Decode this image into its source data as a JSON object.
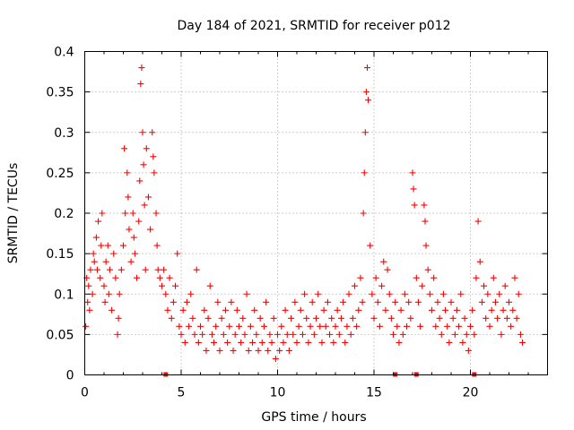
{
  "chart_data": {
    "type": "scatter",
    "title": "Day 184 of 2021, SRMTID for receiver p012",
    "xlabel": "GPS time / hours",
    "ylabel": "SRMTID / TECUs",
    "xlim": [
      0,
      24.0
    ],
    "ylim": [
      0,
      0.4
    ],
    "x_ticks": [
      0,
      5,
      10,
      15,
      20
    ],
    "y_ticks": [
      0,
      0.05,
      0.1,
      0.15,
      0.2,
      0.25,
      0.3,
      0.35,
      0.4
    ],
    "x_tick_labels": [
      "0",
      "5",
      "10",
      "15",
      "20"
    ],
    "y_tick_labels": [
      "0",
      "0.05",
      "0.1",
      "0.15",
      "0.2",
      "0.25",
      "0.3",
      "0.35",
      "0.4"
    ],
    "grid": true,
    "marker": "+",
    "color": "#ff0000",
    "series": [
      {
        "name": "SRMTID",
        "points": [
          [
            0.05,
            0.06
          ],
          [
            0.1,
            0.12
          ],
          [
            0.15,
            0.09
          ],
          [
            0.2,
            0.11
          ],
          [
            0.25,
            0.08
          ],
          [
            0.3,
            0.13
          ],
          [
            0.4,
            0.1
          ],
          [
            0.45,
            0.15
          ],
          [
            0.5,
            0.14
          ],
          [
            0.6,
            0.17
          ],
          [
            0.65,
            0.13
          ],
          [
            0.7,
            0.19
          ],
          [
            0.8,
            0.12
          ],
          [
            0.85,
            0.16
          ],
          [
            0.9,
            0.2
          ],
          [
            1.0,
            0.11
          ],
          [
            1.05,
            0.09
          ],
          [
            1.1,
            0.14
          ],
          [
            1.2,
            0.16
          ],
          [
            1.25,
            0.1
          ],
          [
            1.3,
            0.13
          ],
          [
            1.4,
            0.08
          ],
          [
            1.5,
            0.15
          ],
          [
            1.6,
            0.12
          ],
          [
            1.7,
            0.05
          ],
          [
            1.75,
            0.07
          ],
          [
            1.8,
            0.1
          ],
          [
            1.9,
            0.13
          ],
          [
            2.0,
            0.16
          ],
          [
            2.05,
            0.28
          ],
          [
            2.1,
            0.2
          ],
          [
            2.2,
            0.25
          ],
          [
            2.25,
            0.22
          ],
          [
            2.3,
            0.18
          ],
          [
            2.4,
            0.14
          ],
          [
            2.5,
            0.2
          ],
          [
            2.55,
            0.17
          ],
          [
            2.6,
            0.15
          ],
          [
            2.7,
            0.12
          ],
          [
            2.8,
            0.19
          ],
          [
            2.85,
            0.24
          ],
          [
            2.9,
            0.36
          ],
          [
            2.95,
            0.38
          ],
          [
            3.0,
            0.3
          ],
          [
            3.05,
            0.26
          ],
          [
            3.1,
            0.21
          ],
          [
            3.15,
            0.13
          ],
          [
            3.2,
            0.28
          ],
          [
            3.3,
            0.22
          ],
          [
            3.4,
            0.18
          ],
          [
            3.5,
            0.3
          ],
          [
            3.55,
            0.27
          ],
          [
            3.6,
            0.25
          ],
          [
            3.7,
            0.2
          ],
          [
            3.75,
            0.16
          ],
          [
            3.8,
            0.13
          ],
          [
            3.9,
            0.12
          ],
          [
            4.0,
            0.11
          ],
          [
            4.1,
            0.13
          ],
          [
            4.2,
            0.1
          ],
          [
            4.3,
            0.08
          ],
          [
            4.4,
            0.12
          ],
          [
            4.5,
            0.07
          ],
          [
            4.6,
            0.09
          ],
          [
            4.7,
            0.11
          ],
          [
            4.8,
            0.15
          ],
          [
            4.9,
            0.06
          ],
          [
            5.0,
            0.05
          ],
          [
            5.1,
            0.08
          ],
          [
            5.2,
            0.04
          ],
          [
            5.3,
            0.09
          ],
          [
            5.4,
            0.06
          ],
          [
            5.5,
            0.1
          ],
          [
            5.6,
            0.07
          ],
          [
            5.7,
            0.05
          ],
          [
            5.8,
            0.13
          ],
          [
            5.9,
            0.04
          ],
          [
            6.0,
            0.06
          ],
          [
            6.1,
            0.05
          ],
          [
            6.2,
            0.08
          ],
          [
            6.3,
            0.03
          ],
          [
            6.4,
            0.07
          ],
          [
            6.5,
            0.11
          ],
          [
            6.6,
            0.05
          ],
          [
            6.7,
            0.04
          ],
          [
            6.8,
            0.06
          ],
          [
            6.9,
            0.09
          ],
          [
            7.0,
            0.03
          ],
          [
            7.1,
            0.07
          ],
          [
            7.2,
            0.05
          ],
          [
            7.3,
            0.08
          ],
          [
            7.4,
            0.04
          ],
          [
            7.5,
            0.06
          ],
          [
            7.6,
            0.09
          ],
          [
            7.7,
            0.03
          ],
          [
            7.8,
            0.05
          ],
          [
            7.9,
            0.08
          ],
          [
            8.0,
            0.06
          ],
          [
            8.1,
            0.04
          ],
          [
            8.2,
            0.07
          ],
          [
            8.3,
            0.05
          ],
          [
            8.4,
            0.1
          ],
          [
            8.5,
            0.03
          ],
          [
            8.6,
            0.06
          ],
          [
            8.7,
            0.04
          ],
          [
            8.8,
            0.08
          ],
          [
            8.9,
            0.05
          ],
          [
            9.0,
            0.03
          ],
          [
            9.1,
            0.07
          ],
          [
            9.2,
            0.04
          ],
          [
            9.3,
            0.06
          ],
          [
            9.4,
            0.09
          ],
          [
            9.5,
            0.03
          ],
          [
            9.6,
            0.05
          ],
          [
            9.7,
            0.04
          ],
          [
            9.8,
            0.07
          ],
          [
            9.9,
            0.02
          ],
          [
            10.0,
            0.05
          ],
          [
            10.1,
            0.03
          ],
          [
            10.2,
            0.06
          ],
          [
            10.3,
            0.04
          ],
          [
            10.4,
            0.08
          ],
          [
            10.5,
            0.05
          ],
          [
            10.6,
            0.03
          ],
          [
            10.7,
            0.07
          ],
          [
            10.8,
            0.05
          ],
          [
            10.9,
            0.09
          ],
          [
            11.0,
            0.04
          ],
          [
            11.1,
            0.06
          ],
          [
            11.2,
            0.08
          ],
          [
            11.3,
            0.05
          ],
          [
            11.4,
            0.1
          ],
          [
            11.5,
            0.07
          ],
          [
            11.6,
            0.04
          ],
          [
            11.7,
            0.06
          ],
          [
            11.8,
            0.09
          ],
          [
            11.9,
            0.05
          ],
          [
            12.0,
            0.07
          ],
          [
            12.1,
            0.1
          ],
          [
            12.2,
            0.06
          ],
          [
            12.3,
            0.04
          ],
          [
            12.4,
            0.08
          ],
          [
            12.5,
            0.06
          ],
          [
            12.6,
            0.09
          ],
          [
            12.7,
            0.05
          ],
          [
            12.8,
            0.07
          ],
          [
            12.9,
            0.04
          ],
          [
            13.0,
            0.06
          ],
          [
            13.1,
            0.08
          ],
          [
            13.2,
            0.05
          ],
          [
            13.3,
            0.07
          ],
          [
            13.4,
            0.09
          ],
          [
            13.5,
            0.04
          ],
          [
            13.6,
            0.06
          ],
          [
            13.7,
            0.1
          ],
          [
            13.8,
            0.05
          ],
          [
            13.9,
            0.07
          ],
          [
            14.0,
            0.11
          ],
          [
            14.1,
            0.06
          ],
          [
            14.2,
            0.08
          ],
          [
            14.3,
            0.12
          ],
          [
            14.4,
            0.09
          ],
          [
            14.45,
            0.2
          ],
          [
            14.5,
            0.25
          ],
          [
            14.55,
            0.3
          ],
          [
            14.6,
            0.35
          ],
          [
            14.65,
            0.38
          ],
          [
            14.7,
            0.34
          ],
          [
            14.8,
            0.16
          ],
          [
            14.9,
            0.1
          ],
          [
            15.0,
            0.07
          ],
          [
            15.1,
            0.12
          ],
          [
            15.2,
            0.09
          ],
          [
            15.3,
            0.06
          ],
          [
            15.4,
            0.11
          ],
          [
            15.5,
            0.14
          ],
          [
            15.6,
            0.08
          ],
          [
            15.7,
            0.13
          ],
          [
            15.8,
            0.1
          ],
          [
            15.9,
            0.07
          ],
          [
            16.0,
            0.05
          ],
          [
            16.1,
            0.09
          ],
          [
            16.2,
            0.06
          ],
          [
            16.3,
            0.04
          ],
          [
            16.4,
            0.08
          ],
          [
            16.5,
            0.05
          ],
          [
            16.6,
            0.1
          ],
          [
            16.7,
            0.06
          ],
          [
            16.8,
            0.09
          ],
          [
            16.9,
            0.07
          ],
          [
            17.0,
            0.25
          ],
          [
            17.05,
            0.23
          ],
          [
            17.1,
            0.21
          ],
          [
            17.2,
            0.12
          ],
          [
            17.3,
            0.09
          ],
          [
            17.4,
            0.06
          ],
          [
            17.5,
            0.11
          ],
          [
            17.6,
            0.21
          ],
          [
            17.65,
            0.19
          ],
          [
            17.7,
            0.16
          ],
          [
            17.8,
            0.13
          ],
          [
            17.9,
            0.1
          ],
          [
            18.0,
            0.08
          ],
          [
            18.1,
            0.12
          ],
          [
            18.2,
            0.06
          ],
          [
            18.3,
            0.09
          ],
          [
            18.4,
            0.07
          ],
          [
            18.5,
            0.05
          ],
          [
            18.6,
            0.1
          ],
          [
            18.7,
            0.08
          ],
          [
            18.8,
            0.06
          ],
          [
            18.9,
            0.04
          ],
          [
            19.0,
            0.09
          ],
          [
            19.1,
            0.07
          ],
          [
            19.2,
            0.05
          ],
          [
            19.3,
            0.08
          ],
          [
            19.4,
            0.06
          ],
          [
            19.5,
            0.1
          ],
          [
            19.6,
            0.04
          ],
          [
            19.7,
            0.07
          ],
          [
            19.8,
            0.05
          ],
          [
            19.9,
            0.03
          ],
          [
            20.0,
            0.06
          ],
          [
            20.1,
            0.08
          ],
          [
            20.2,
            0.05
          ],
          [
            20.3,
            0.12
          ],
          [
            20.4,
            0.19
          ],
          [
            20.5,
            0.14
          ],
          [
            20.6,
            0.09
          ],
          [
            20.7,
            0.11
          ],
          [
            20.8,
            0.07
          ],
          [
            20.9,
            0.1
          ],
          [
            21.0,
            0.06
          ],
          [
            21.1,
            0.08
          ],
          [
            21.2,
            0.12
          ],
          [
            21.3,
            0.09
          ],
          [
            21.4,
            0.07
          ],
          [
            21.5,
            0.1
          ],
          [
            21.6,
            0.05
          ],
          [
            21.7,
            0.08
          ],
          [
            21.8,
            0.11
          ],
          [
            21.9,
            0.07
          ],
          [
            22.0,
            0.09
          ],
          [
            22.1,
            0.06
          ],
          [
            22.2,
            0.08
          ],
          [
            22.3,
            0.12
          ],
          [
            22.4,
            0.07
          ],
          [
            22.5,
            0.1
          ],
          [
            22.6,
            0.05
          ],
          [
            22.7,
            0.04
          ]
        ]
      }
    ],
    "gap_markers_x": [
      4.2,
      16.1,
      17.2,
      20.2
    ]
  }
}
